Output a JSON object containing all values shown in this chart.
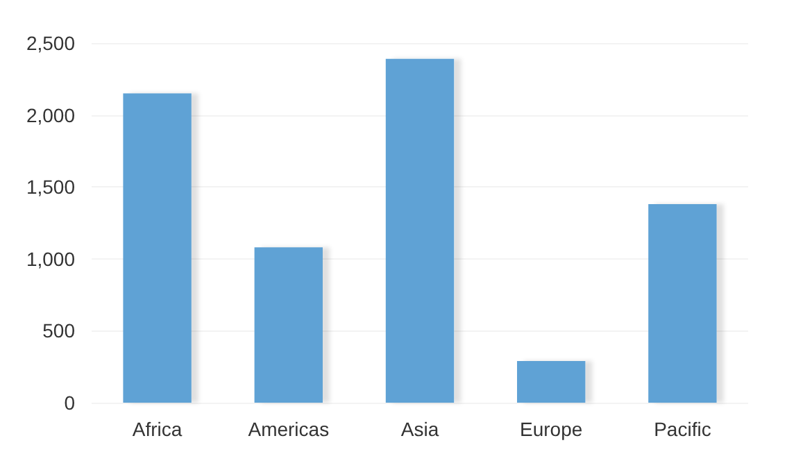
{
  "chart_data": {
    "type": "bar",
    "categories": [
      "Africa",
      "Americas",
      "Asia",
      "Europe",
      "Pacific"
    ],
    "values": [
      2150,
      1080,
      2390,
      290,
      1380
    ],
    "color": "#5fa2d5",
    "ylim": [
      0,
      2500
    ],
    "yticks": [
      0,
      500,
      {
        "value": 1000,
        "label": "1,000"
      },
      {
        "value": 1500,
        "label": "1,500"
      },
      {
        "value": 2000,
        "label": "2,000"
      },
      {
        "value": 2500,
        "label": "2,500"
      }
    ],
    "grid": "y"
  }
}
